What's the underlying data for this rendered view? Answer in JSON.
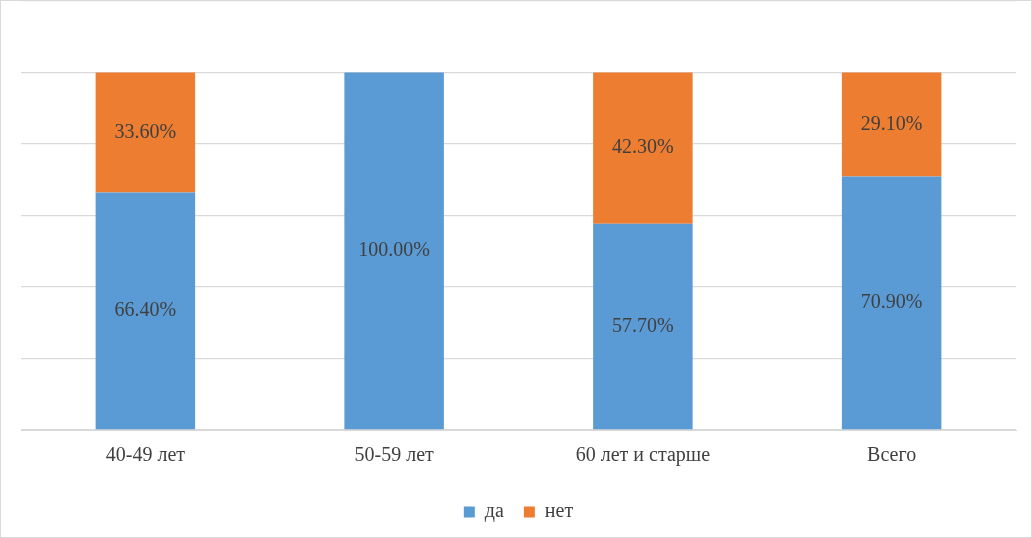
{
  "chart_data": {
    "type": "bar",
    "stacked": true,
    "categories": [
      "40-49 лет",
      "50-59 лет",
      "60 лет и старше",
      "Всего"
    ],
    "series": [
      {
        "name": "да",
        "color": "#5b9bd5",
        "values": [
          66.4,
          100,
          57.7,
          70.9
        ],
        "value_labels": [
          "66.40%",
          "100.00%",
          "57.70%",
          "70.90%"
        ]
      },
      {
        "name": "нет",
        "color": "#ed7d31",
        "values": [
          33.6,
          0,
          42.3,
          29.1
        ],
        "value_labels": [
          "33.60%",
          null,
          "42.30%",
          "29.10%"
        ]
      }
    ],
    "ylim": [
      0,
      120
    ],
    "yticks": [
      {
        "value": 0,
        "label": null
      },
      {
        "value": 20,
        "label": null
      },
      {
        "value": 40,
        "label": null
      },
      {
        "value": 60,
        "label": null
      },
      {
        "value": 80,
        "label": null
      },
      {
        "value": 100,
        "label": null
      },
      {
        "value": 120,
        "label": null
      }
    ],
    "grid": "y",
    "tick_labels": "x",
    "legend": "bottom"
  }
}
